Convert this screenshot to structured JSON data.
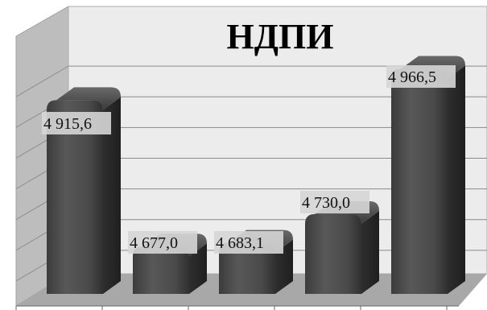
{
  "chart_data": {
    "type": "bar",
    "title": "НДПИ",
    "categories": [
      "",
      "",
      "",
      "",
      ""
    ],
    "values": [
      4915.6,
      4677.0,
      4683.1,
      4730.0,
      4966.5
    ],
    "value_labels": [
      "4 915,6",
      "4 677,0",
      "4 683,1",
      "4 730,0",
      "4 966,5"
    ],
    "ylim": [
      4600,
      5000
    ],
    "grid": true,
    "legend": "none",
    "bar_color": "#4a4a4a",
    "wall_color": "#ececec",
    "floor_color": "#a8a8a8"
  }
}
